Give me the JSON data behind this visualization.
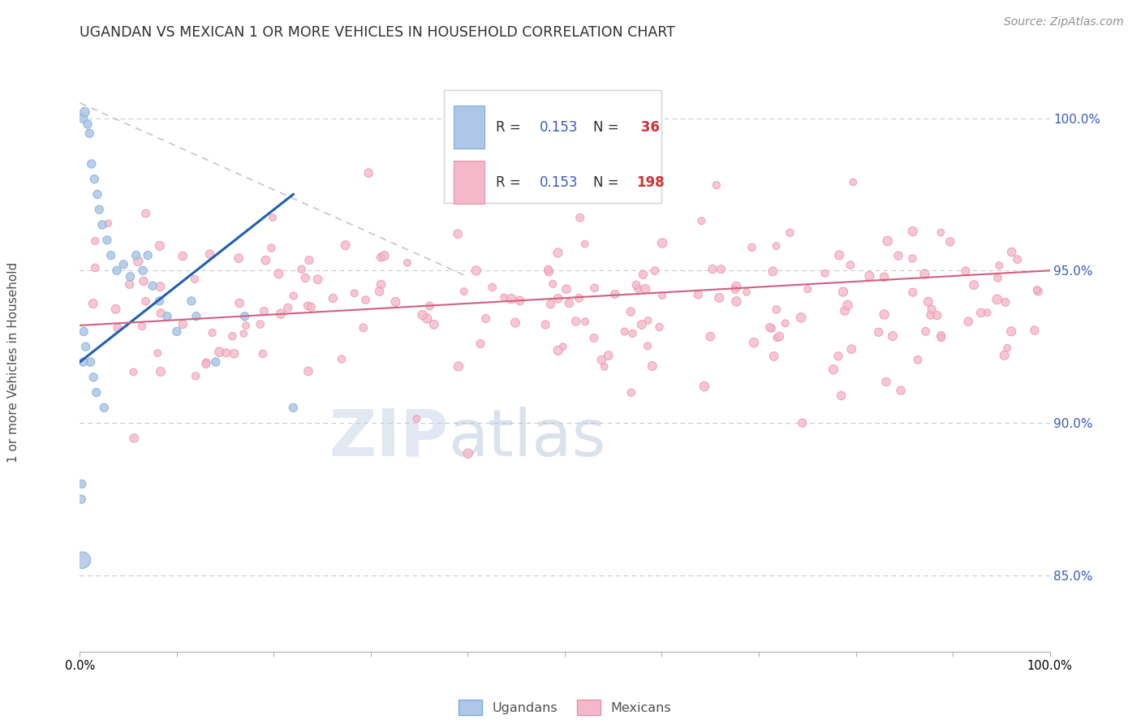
{
  "title": "UGANDAN VS MEXICAN 1 OR MORE VEHICLES IN HOUSEHOLD CORRELATION CHART",
  "source": "Source: ZipAtlas.com",
  "ylabel": "1 or more Vehicles in Household",
  "right_yticks": [
    85.0,
    90.0,
    95.0,
    100.0
  ],
  "blue_color": "#aec6e8",
  "blue_edge": "#7bafd4",
  "pink_color": "#f5b8ca",
  "pink_edge": "#e890a8",
  "blue_line_color": "#2060b0",
  "pink_line_color": "#d06080",
  "background_color": "#ffffff",
  "grid_color": "#c8ccd8",
  "title_color": "#303030",
  "source_color": "#909090",
  "axis_label_color": "#505050",
  "right_tick_color": "#3a5bbf",
  "watermark_zip_color": "#c0cce0",
  "watermark_atlas_color": "#a8b8d4",
  "legend_box_color": "#e8e8ec",
  "legend_R_color": "#303030",
  "legend_val_color": "#3a5bbf",
  "legend_N_color": "#303030",
  "legend_Nval_color": "#cc3333",
  "ylim_bottom": 82.5,
  "ylim_top": 101.5,
  "xlim_left": 0,
  "xlim_right": 100
}
